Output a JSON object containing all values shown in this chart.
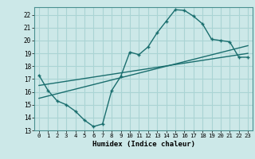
{
  "title": "",
  "xlabel": "Humidex (Indice chaleur)",
  "bg_color": "#cce8e8",
  "grid_color": "#aad4d4",
  "line_color": "#1a6e6e",
  "xlim": [
    -0.5,
    23.5
  ],
  "ylim": [
    13,
    22.6
  ],
  "yticks": [
    13,
    14,
    15,
    16,
    17,
    18,
    19,
    20,
    21,
    22
  ],
  "xticks": [
    0,
    1,
    2,
    3,
    4,
    5,
    6,
    7,
    8,
    9,
    10,
    11,
    12,
    13,
    14,
    15,
    16,
    17,
    18,
    19,
    20,
    21,
    22,
    23
  ],
  "main_x": [
    0,
    1,
    2,
    3,
    4,
    5,
    6,
    7,
    8,
    9,
    10,
    11,
    12,
    13,
    14,
    15,
    16,
    17,
    18,
    19,
    20,
    21,
    22,
    23
  ],
  "main_y": [
    17.3,
    16.1,
    15.3,
    15.0,
    14.5,
    13.8,
    13.3,
    13.5,
    16.1,
    17.2,
    19.1,
    18.9,
    19.5,
    20.6,
    21.5,
    22.4,
    22.35,
    21.9,
    21.3,
    20.1,
    20.0,
    19.9,
    18.7,
    18.7
  ],
  "line1_x": [
    0,
    23
  ],
  "line1_y": [
    16.5,
    19.0
  ],
  "line2_x": [
    0,
    23
  ],
  "line2_y": [
    15.5,
    19.6
  ]
}
